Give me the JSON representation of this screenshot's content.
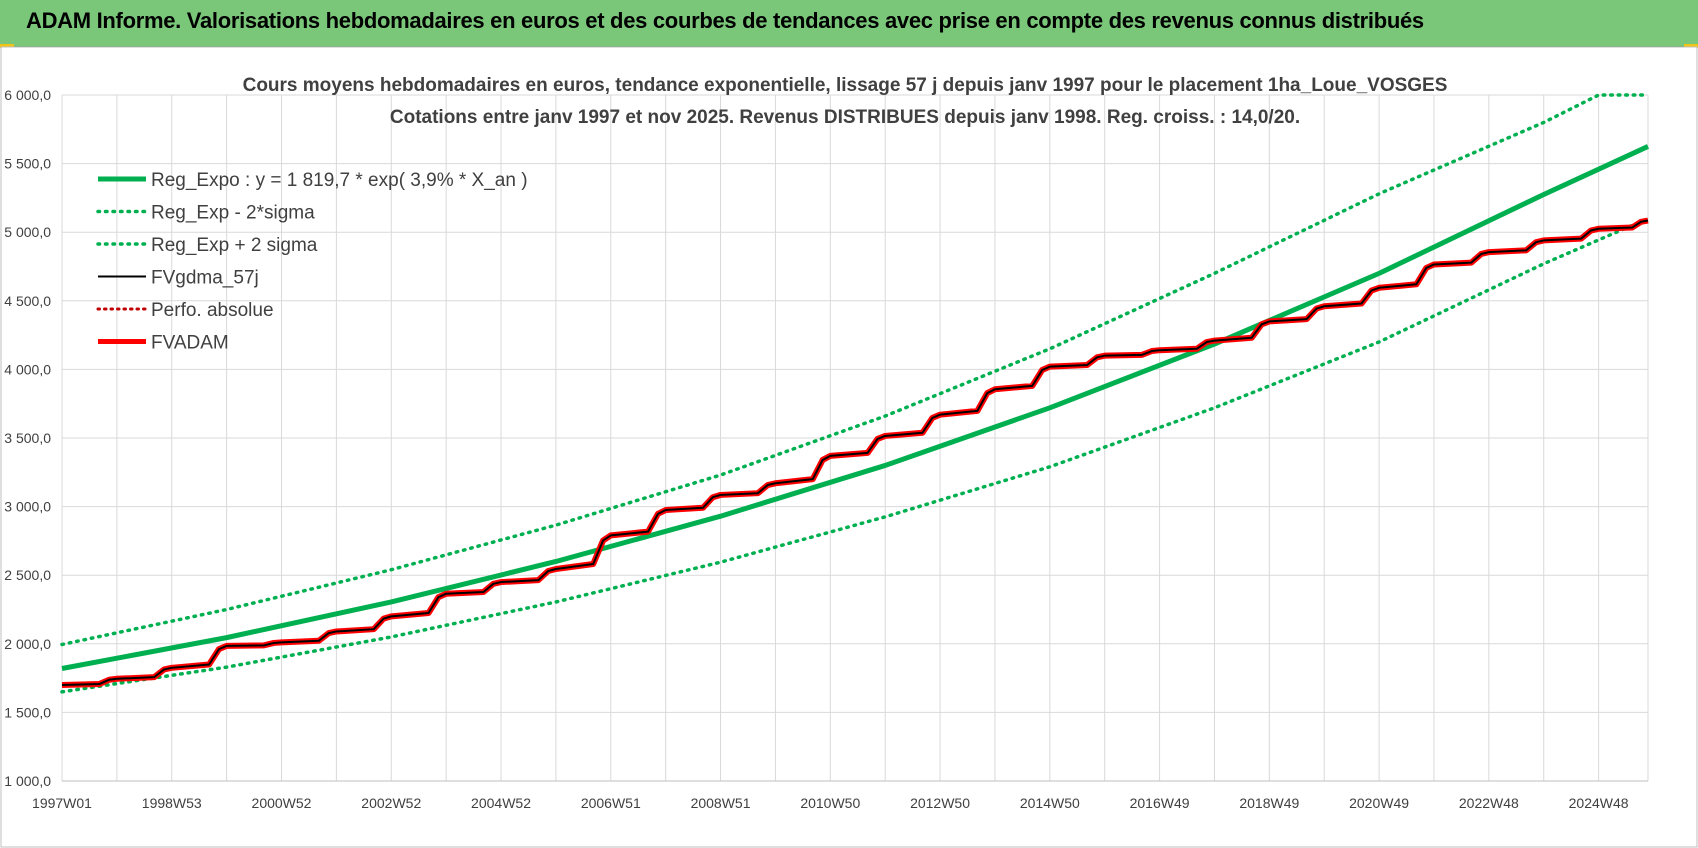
{
  "banner": {
    "title": "ADAM Informe. Valorisations hebdomadaires en euros et des courbes de tendances avec prise en compte des revenus connus distribués"
  },
  "colors": {
    "banner_bg": "#7ac77a",
    "reg_green": "#00b050",
    "fv_red": "#ff0000",
    "gdma_black": "#000000",
    "perfo_red": "#c00000",
    "grid": "#d9d9d9"
  },
  "chart_data": {
    "type": "line",
    "title": "Cours moyens hebdomadaires en euros, tendance exponentielle, lissage 57 j depuis janv 1997  pour le placement 1ha_Loue_VOSGES",
    "subtitle": "Cotations entre janv 1997 et nov 2025. Revenus  DISTRIBUES depuis janv 1998.  Reg. croiss. : 14,0/20.",
    "xlabel": "",
    "ylabel": "",
    "ylim": [
      1000,
      6000
    ],
    "xlim": [
      1997.0,
      2025.9
    ],
    "yticks": [
      "1 000,0",
      "1 500,0",
      "2 000,0",
      "2 500,0",
      "3 000,0",
      "3 500,0",
      "4 000,0",
      "4 500,0",
      "5 000,0",
      "5 500,0",
      "6 000,0"
    ],
    "xtick_labels": [
      {
        "label": "1997W01",
        "x": 1997.0
      },
      {
        "label": "1998W53",
        "x": 1999.0
      },
      {
        "label": "2000W52",
        "x": 2001.0
      },
      {
        "label": "2002W52",
        "x": 2003.0
      },
      {
        "label": "2004W52",
        "x": 2005.0
      },
      {
        "label": "2006W51",
        "x": 2007.0
      },
      {
        "label": "2008W51",
        "x": 2009.0
      },
      {
        "label": "2010W50",
        "x": 2011.0
      },
      {
        "label": "2012W50",
        "x": 2013.0
      },
      {
        "label": "2014W50",
        "x": 2015.0
      },
      {
        "label": "2016W49",
        "x": 2017.0
      },
      {
        "label": "2018W49",
        "x": 2019.0
      },
      {
        "label": "2020W49",
        "x": 2021.0
      },
      {
        "label": "2022W48",
        "x": 2023.0
      },
      {
        "label": "2024W48",
        "x": 2025.0
      }
    ],
    "grid": true,
    "legend_position": "top-left",
    "series": [
      {
        "name": "Reg_Expo : y = 1 819,7 * exp( 3,9% *  X_an )",
        "style": "solid-green",
        "x": [
          1997.0,
          2000.0,
          2003.0,
          2006.0,
          2009.0,
          2012.0,
          2015.0,
          2018.0,
          2021.0,
          2024.0,
          2025.9
        ],
        "y": [
          1820,
          2045,
          2305,
          2600,
          2930,
          3300,
          3720,
          4185,
          4700,
          5275,
          5625
        ]
      },
      {
        "name": "Reg_Exp - 2*sigma",
        "style": "dotted-green",
        "x": [
          1997.0,
          2000.0,
          2003.0,
          2006.0,
          2009.0,
          2012.0,
          2015.0,
          2018.0,
          2021.0,
          2024.0,
          2025.9
        ],
        "y": [
          1650,
          1830,
          2050,
          2305,
          2595,
          2925,
          3290,
          3720,
          4200,
          4770,
          5100
        ]
      },
      {
        "name": "Reg_Exp + 2 sigma",
        "style": "dotted-green",
        "x": [
          1997.0,
          2000.0,
          2003.0,
          2006.0,
          2009.0,
          2012.0,
          2015.0,
          2018.0,
          2021.0,
          2024.0,
          2025.0,
          2025.9
        ],
        "y": [
          1995,
          2250,
          2540,
          2865,
          3230,
          3660,
          4150,
          4700,
          5280,
          5800,
          6000,
          6000
        ]
      },
      {
        "name": "FVgdma_57j",
        "style": "solid-black-thin",
        "x": [
          1997.0,
          1998.0,
          1999.0,
          2000.0,
          2001.0,
          2002.0,
          2003.0,
          2004.0,
          2005.0,
          2006.0,
          2007.0,
          2008.0,
          2009.0,
          2010.0,
          2011.0,
          2012.0,
          2013.0,
          2014.0,
          2015.0,
          2016.0,
          2017.0,
          2018.0,
          2019.0,
          2020.0,
          2021.0,
          2022.0,
          2023.0,
          2024.0,
          2025.0,
          2025.9
        ],
        "y": [
          1700,
          1745,
          1825,
          1985,
          2010,
          2090,
          2200,
          2365,
          2450,
          2545,
          2790,
          2975,
          3085,
          3170,
          3370,
          3515,
          3670,
          3855,
          4020,
          4100,
          4140,
          4210,
          4350,
          4460,
          4595,
          4765,
          4855,
          4940,
          5025,
          5085
        ]
      },
      {
        "name": "Perfo. absolue",
        "style": "dotted-red",
        "x": [],
        "y": []
      },
      {
        "name": "FVADAM",
        "style": "solid-red-thick",
        "x": [
          1997.0,
          1998.0,
          1999.0,
          2000.0,
          2001.0,
          2002.0,
          2003.0,
          2004.0,
          2005.0,
          2006.0,
          2007.0,
          2008.0,
          2009.0,
          2010.0,
          2011.0,
          2012.0,
          2013.0,
          2014.0,
          2015.0,
          2016.0,
          2017.0,
          2018.0,
          2019.0,
          2020.0,
          2021.0,
          2022.0,
          2023.0,
          2024.0,
          2025.0,
          2025.9
        ],
        "y": [
          1700,
          1745,
          1825,
          1985,
          2010,
          2090,
          2200,
          2365,
          2450,
          2545,
          2790,
          2975,
          3085,
          3170,
          3370,
          3515,
          3670,
          3855,
          4020,
          4100,
          4140,
          4210,
          4350,
          4460,
          4595,
          4765,
          4855,
          4940,
          5025,
          5085
        ]
      }
    ]
  }
}
